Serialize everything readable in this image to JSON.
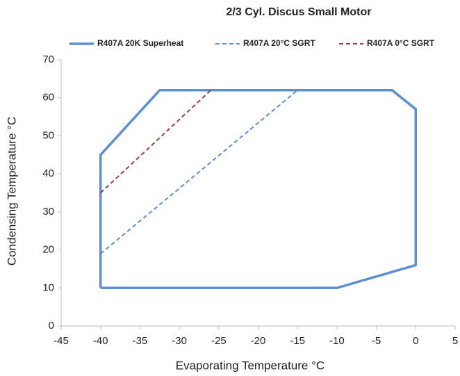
{
  "chart_data": {
    "type": "line",
    "title": "2/3 Cyl. Discus Small Motor",
    "x_label": "Evaporating Temperature °C",
    "y_label": "Condensing Temperature °C",
    "xlim": [
      -45,
      5
    ],
    "xticks": [
      -45,
      -40,
      -35,
      -30,
      -25,
      -20,
      -15,
      -10,
      -5,
      0,
      5
    ],
    "ylim": [
      0,
      70
    ],
    "yticks": [
      0,
      10,
      20,
      30,
      40,
      50,
      60,
      70
    ],
    "grid": false,
    "legend": "top",
    "series": [
      {
        "name": "R407A 20K Superheat",
        "color": "#5b8ed4",
        "style": "solid",
        "x": [
          -40,
          -40,
          -32.5,
          -3,
          0,
          0,
          -10,
          -40
        ],
        "values": [
          10,
          45,
          62,
          62,
          57,
          16,
          10,
          10
        ]
      },
      {
        "name": "R407A 20°C SGRT",
        "color": "#5b8ed4",
        "style": "dashed",
        "x": [
          -40,
          -15
        ],
        "values": [
          19,
          62
        ]
      },
      {
        "name": "R407A 0°C SGRT",
        "color": "#a33d3a",
        "style": "dashed",
        "x": [
          -40,
          -26
        ],
        "values": [
          35,
          62
        ]
      }
    ]
  }
}
